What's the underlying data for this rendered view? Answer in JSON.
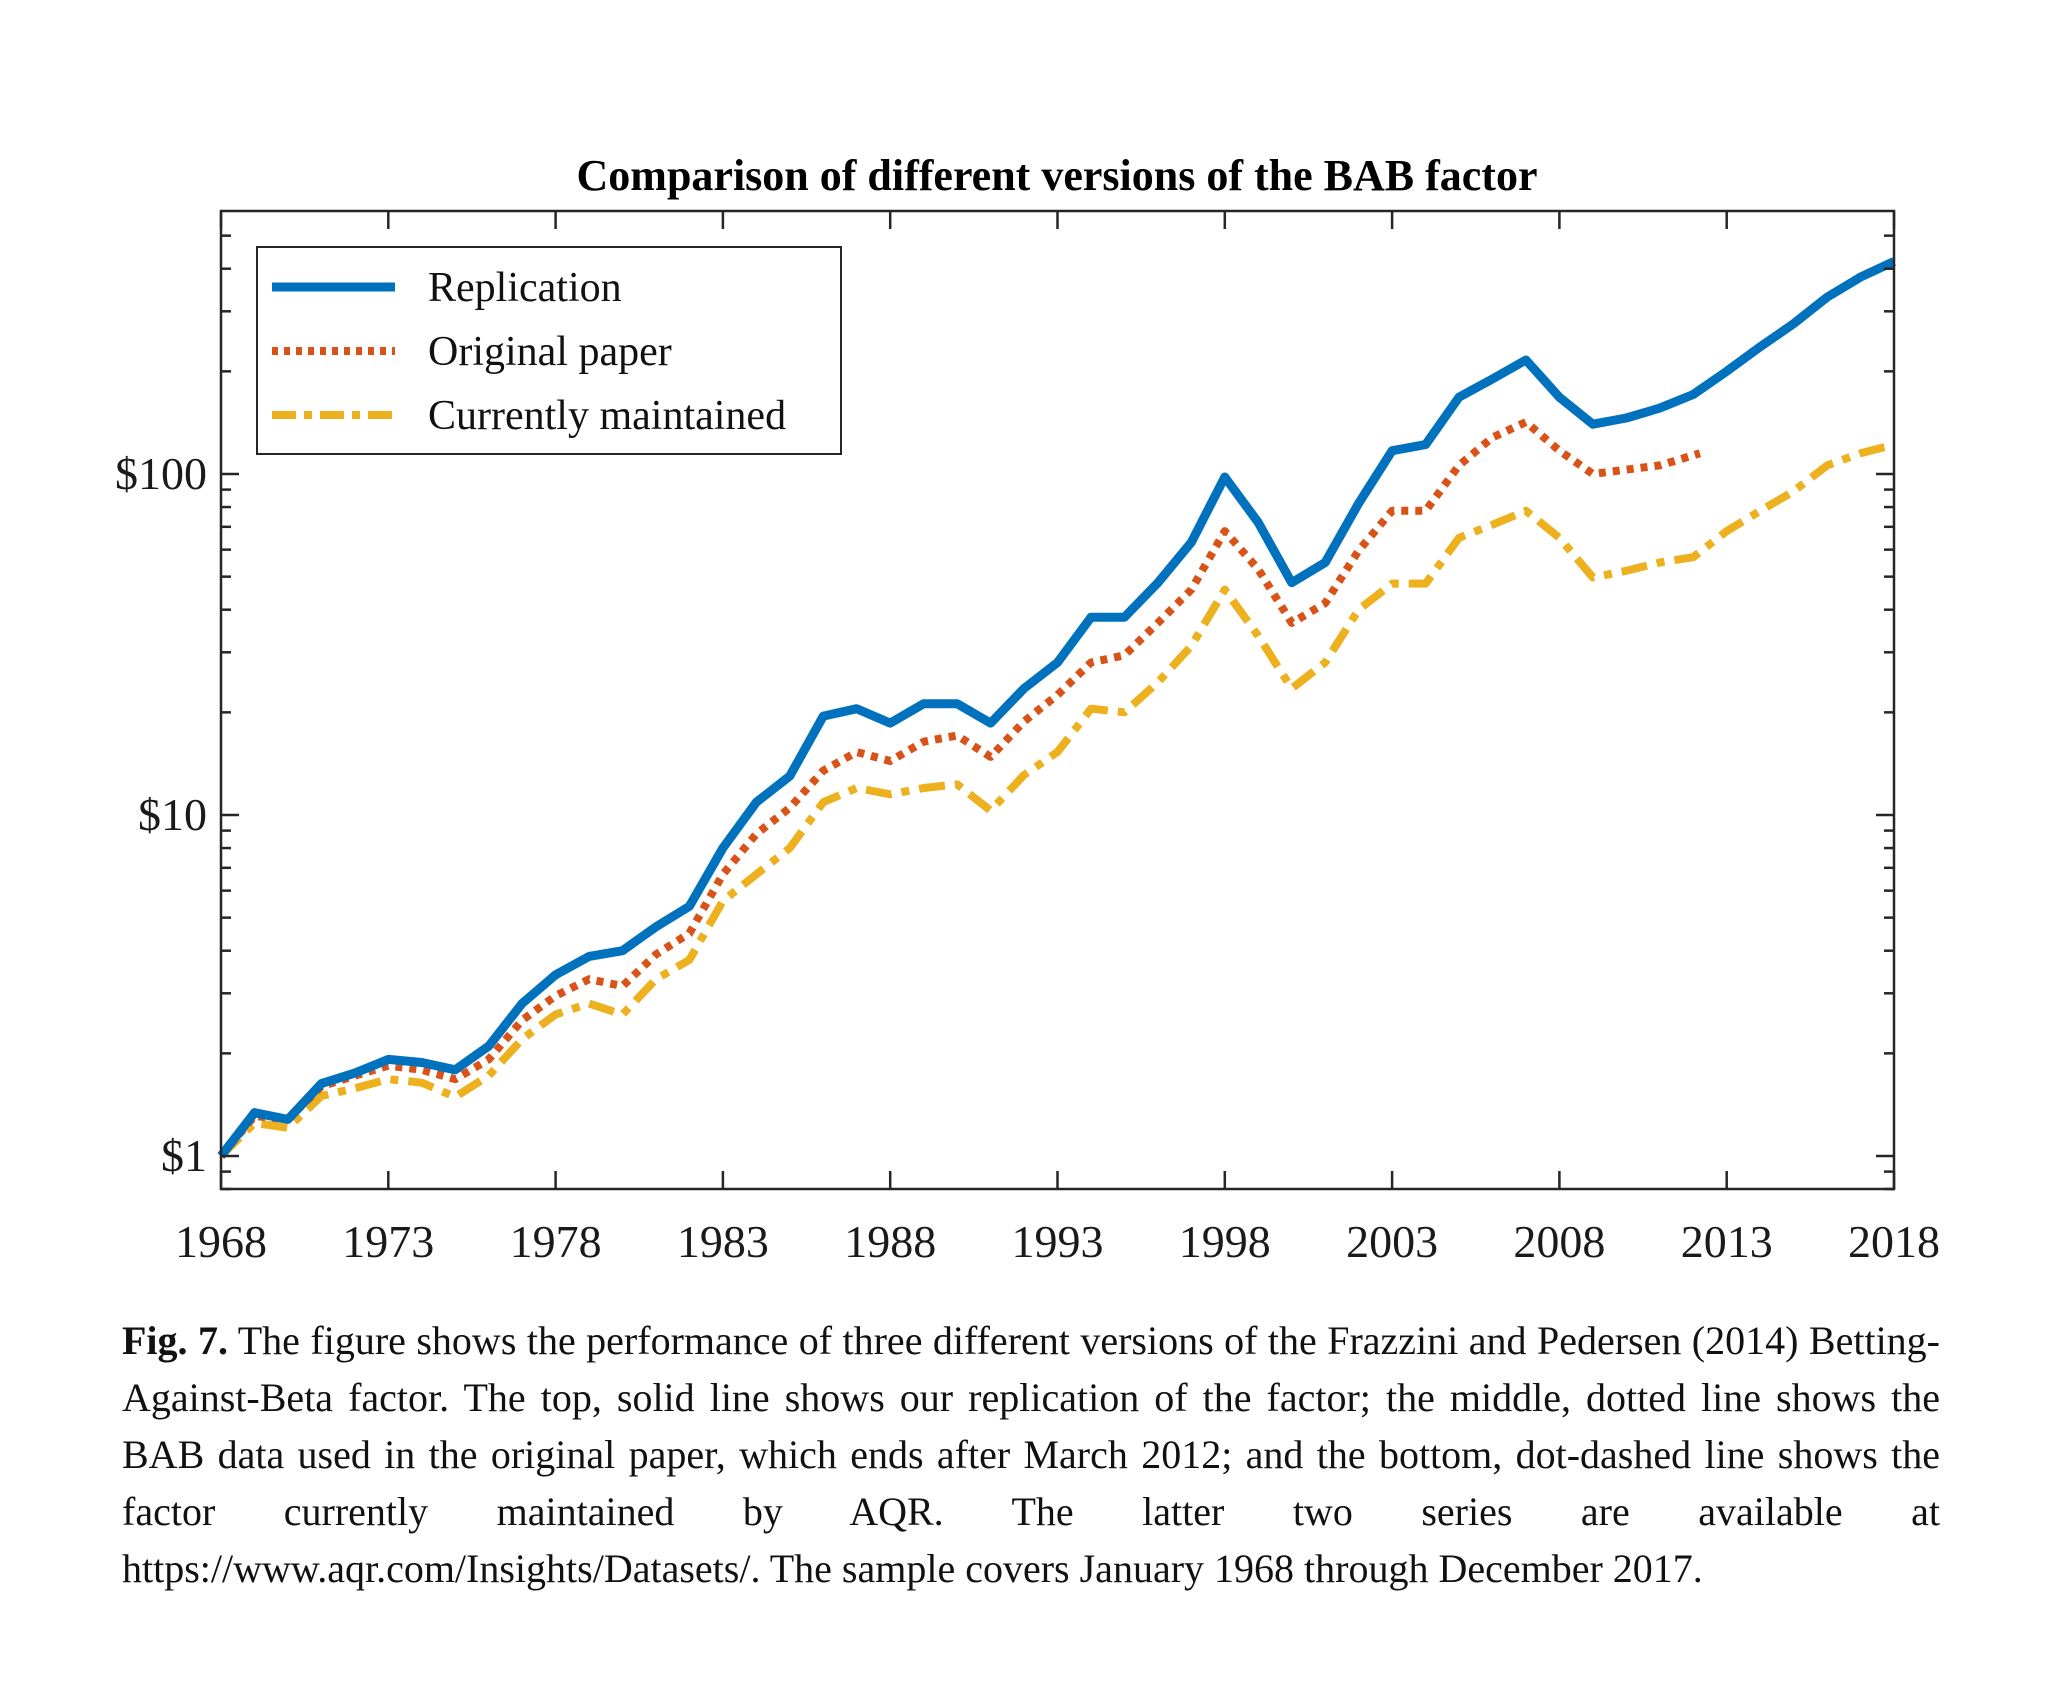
{
  "chart_data": {
    "type": "line",
    "title": "Comparison of different versions of the BAB factor",
    "xlabel": "",
    "ylabel": "",
    "yscale": "log",
    "xlim": [
      1968,
      2018
    ],
    "ylim": [
      0.79,
      590
    ],
    "x_ticks": [
      1968,
      1973,
      1978,
      1983,
      1988,
      1993,
      1998,
      2003,
      2008,
      2013,
      2018
    ],
    "x_tick_labels": [
      "1968",
      "1973",
      "1978",
      "1983",
      "1988",
      "1993",
      "1998",
      "2003",
      "2008",
      "2013",
      "2018"
    ],
    "y_ticks": [
      1,
      10,
      100
    ],
    "y_tick_labels": [
      "$1",
      "$10",
      "$100"
    ],
    "grid": false,
    "legend_position": "top-left",
    "series": [
      {
        "name": "Replication",
        "style": "solid",
        "color": "#0072BD",
        "x": [
          1968,
          1969,
          1970,
          1971,
          1972,
          1973,
          1974,
          1975,
          1976,
          1977,
          1978,
          1979,
          1980,
          1981,
          1982,
          1983,
          1984,
          1985,
          1986,
          1987,
          1988,
          1989,
          1990,
          1991,
          1992,
          1993,
          1994,
          1995,
          1996,
          1997,
          1998,
          1999,
          2000,
          2001,
          2002,
          2003,
          2004,
          2005,
          2006,
          2007,
          2008,
          2009,
          2010,
          2011,
          2012,
          2013,
          2014,
          2015,
          2016,
          2017,
          2018
        ],
        "values": [
          1.0,
          1.34,
          1.28,
          1.63,
          1.75,
          1.92,
          1.88,
          1.79,
          2.1,
          2.8,
          3.4,
          3.85,
          4.0,
          4.7,
          5.4,
          8.0,
          10.9,
          13.0,
          19.5,
          20.5,
          18.6,
          21.2,
          21.2,
          18.6,
          23.5,
          28,
          38,
          38,
          48,
          63,
          98,
          72,
          48,
          55,
          82,
          117,
          122,
          168,
          190,
          216,
          168,
          140,
          146,
          156,
          171,
          200,
          236,
          276,
          330,
          378,
          420
        ]
      },
      {
        "name": "Original paper",
        "style": "dotted",
        "color": "#D95319",
        "x": [
          1968,
          1969,
          1970,
          1971,
          1972,
          1973,
          1974,
          1975,
          1976,
          1977,
          1978,
          1979,
          1980,
          1981,
          1982,
          1983,
          1984,
          1985,
          1986,
          1987,
          1988,
          1989,
          1990,
          1991,
          1992,
          1993,
          1994,
          1995,
          1996,
          1997,
          1998,
          1999,
          2000,
          2001,
          2002,
          2003,
          2004,
          2005,
          2006,
          2007,
          2008,
          2009,
          2010,
          2011,
          2012.2
        ],
        "values": [
          1.0,
          1.31,
          1.28,
          1.6,
          1.72,
          1.84,
          1.79,
          1.68,
          1.92,
          2.5,
          2.95,
          3.3,
          3.15,
          3.9,
          4.5,
          6.7,
          8.8,
          10.5,
          13.5,
          15.3,
          14.4,
          16.4,
          17.1,
          14.8,
          18.8,
          22.5,
          28,
          29.4,
          36.6,
          45.8,
          68,
          52.5,
          36.6,
          41.8,
          59.6,
          78,
          78,
          106,
          128,
          142,
          117,
          100,
          103,
          106,
          115
        ]
      },
      {
        "name": "Currently maintained",
        "style": "dash-dot",
        "color": "#EDB120",
        "x": [
          1968,
          1969,
          1970,
          1971,
          1972,
          1973,
          1974,
          1975,
          1976,
          1977,
          1978,
          1979,
          1980,
          1981,
          1982,
          1983,
          1984,
          1985,
          1986,
          1987,
          1988,
          1989,
          1990,
          1991,
          1992,
          1993,
          1994,
          1995,
          1996,
          1997,
          1998,
          1999,
          2000,
          2001,
          2002,
          2003,
          2004,
          2005,
          2006,
          2007,
          2008,
          2009,
          2010,
          2011,
          2012,
          2013,
          2014,
          2015,
          2016,
          2017,
          2018
        ],
        "values": [
          1.0,
          1.25,
          1.21,
          1.5,
          1.58,
          1.68,
          1.64,
          1.49,
          1.72,
          2.2,
          2.6,
          2.8,
          2.6,
          3.3,
          3.76,
          5.6,
          6.7,
          8.0,
          10.9,
          12.0,
          11.5,
          12.0,
          12.3,
          10.3,
          13.1,
          15.3,
          20.5,
          20.0,
          24.5,
          31.3,
          45.8,
          33.5,
          23.5,
          28,
          40,
          47.7,
          47.7,
          65,
          71,
          78,
          65,
          49.7,
          52,
          55,
          57,
          68,
          78,
          89,
          106,
          115,
          122
        ]
      }
    ]
  },
  "caption": {
    "label": "Fig. 7.",
    "text": " The figure shows the performance of three different versions of the Frazzini and Pedersen (2014) Betting-Against-Beta factor.  The top, solid line shows our replication of the factor; the middle, dotted line shows the BAB data used in the original paper, which ends after March 2012; and the bottom, dot-dashed line shows the factor currently maintained by AQR. The latter two series are available at https://www.aqr.com/Insights/Datasets/. The sample covers January 1968 through December 2017."
  }
}
